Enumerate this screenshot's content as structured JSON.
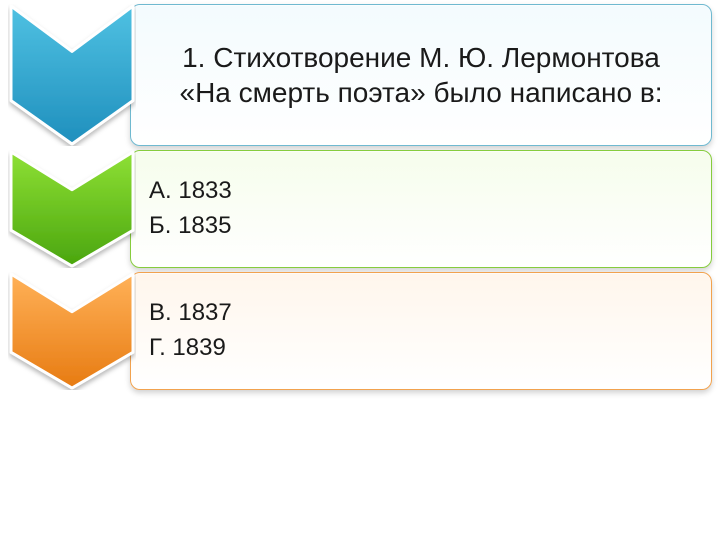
{
  "infographic": {
    "type": "chevron-list",
    "background_color": "#ffffff",
    "row_gap": 4,
    "chevron_width": 128,
    "panel_radius": 10,
    "panel_shadow": "0 3px 6px rgba(0,0,0,.18)",
    "rows": [
      {
        "role": "question",
        "height": 142,
        "chevron": {
          "fill_top": "#4fc1e2",
          "fill_bottom": "#1f8fbd",
          "stroke": "#ffffff",
          "stroke_width": 3
        },
        "panel": {
          "border_color": "#6fb9d0",
          "bg_top": "#f3fbfe",
          "bg_bottom": "#ffffff",
          "fontsize": 28,
          "align": "center"
        },
        "text": "1. Стихотворение М. Ю. Лермонтова «На смерть поэта» было написано в:"
      },
      {
        "role": "answers",
        "height": 118,
        "chevron": {
          "fill_top": "#8ee035",
          "fill_bottom": "#4aa50e",
          "stroke": "#ffffff",
          "stroke_width": 3
        },
        "panel": {
          "border_color": "#86cc3d",
          "bg_top": "#f6fdec",
          "bg_bottom": "#ffffff",
          "fontsize": 24,
          "align": "left"
        },
        "lines": [
          "А. 1833",
          "Б. 1835"
        ]
      },
      {
        "role": "answers",
        "height": 118,
        "chevron": {
          "fill_top": "#ffb158",
          "fill_bottom": "#e77b12",
          "stroke": "#ffffff",
          "stroke_width": 3
        },
        "panel": {
          "border_color": "#f2a24e",
          "bg_top": "#fff6ec",
          "bg_bottom": "#ffffff",
          "fontsize": 24,
          "align": "left"
        },
        "lines": [
          "В. 1837",
          "Г.  1839"
        ]
      }
    ]
  }
}
